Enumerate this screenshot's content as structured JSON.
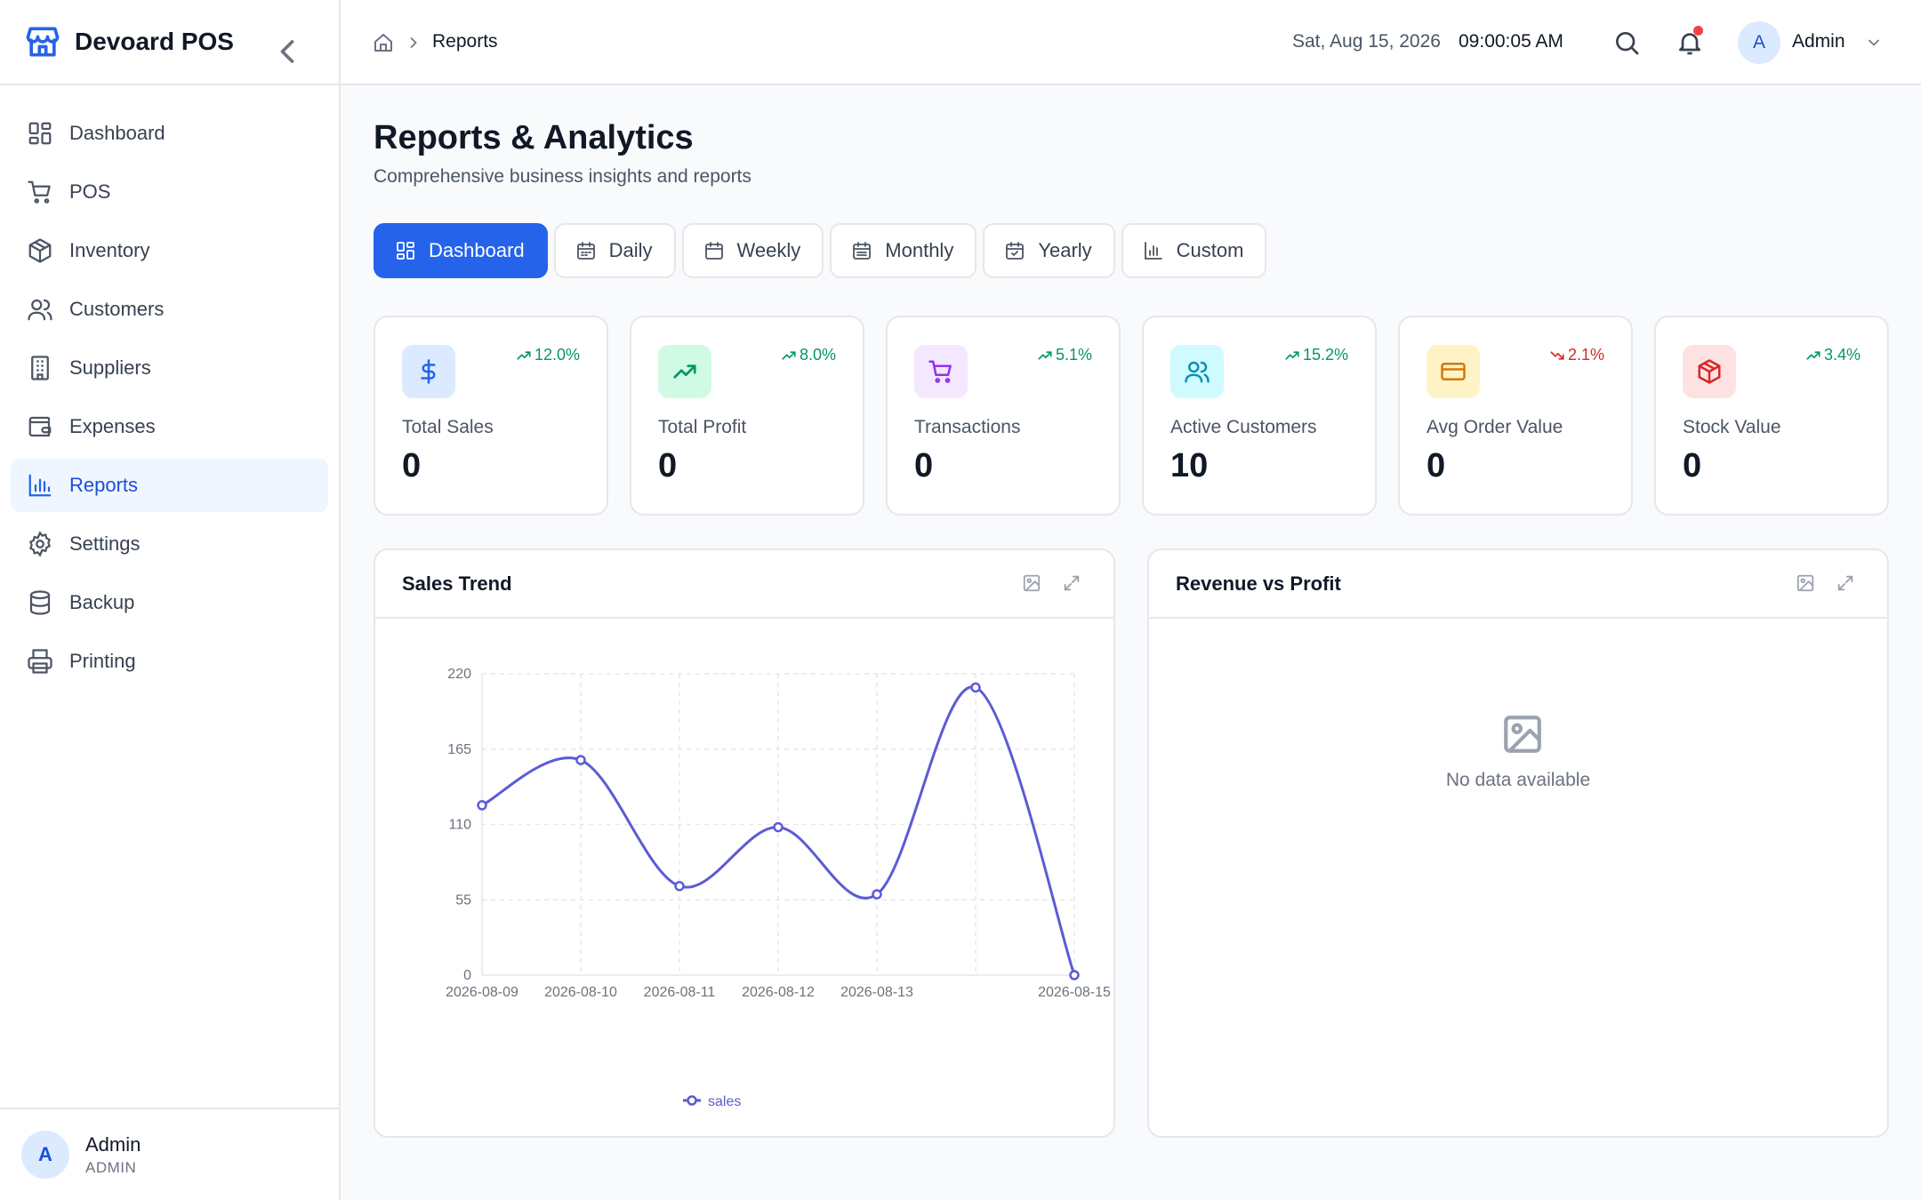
{
  "app": {
    "name": "Devoard POS"
  },
  "sidebar": {
    "items": [
      {
        "label": "Dashboard",
        "icon": "layout-grid-icon"
      },
      {
        "label": "POS",
        "icon": "shopping-cart-icon"
      },
      {
        "label": "Inventory",
        "icon": "package-icon"
      },
      {
        "label": "Customers",
        "icon": "users-icon"
      },
      {
        "label": "Suppliers",
        "icon": "building-icon"
      },
      {
        "label": "Expenses",
        "icon": "wallet-icon"
      },
      {
        "label": "Reports",
        "icon": "bar-chart-icon",
        "active": true
      },
      {
        "label": "Settings",
        "icon": "gear-icon"
      },
      {
        "label": "Backup",
        "icon": "database-icon"
      },
      {
        "label": "Printing",
        "icon": "printer-icon"
      }
    ],
    "user": {
      "initial": "A",
      "name": "Admin",
      "role": "ADMIN"
    }
  },
  "header": {
    "breadcrumb": {
      "current": "Reports"
    },
    "date": "Sat, Aug 15, 2026",
    "time": "09:00:05 AM",
    "user": {
      "initial": "A",
      "name": "Admin"
    },
    "has_notification": true
  },
  "page": {
    "title": "Reports & Analytics",
    "subtitle": "Comprehensive business insights and reports"
  },
  "tabs": [
    {
      "label": "Dashboard",
      "icon": "layout-grid-icon",
      "active": true
    },
    {
      "label": "Daily",
      "icon": "calendar-icon"
    },
    {
      "label": "Weekly",
      "icon": "calendar-icon"
    },
    {
      "label": "Monthly",
      "icon": "calendar-icon"
    },
    {
      "label": "Yearly",
      "icon": "calendar-check-icon"
    },
    {
      "label": "Custom",
      "icon": "bar-chart-icon"
    }
  ],
  "stats": [
    {
      "label": "Total Sales",
      "value": "0",
      "trend": "12.0%",
      "direction": "up",
      "icon": "dollar-icon",
      "color": "#2563eb",
      "bg": "#dbeafe"
    },
    {
      "label": "Total Profit",
      "value": "0",
      "trend": "8.0%",
      "direction": "up",
      "icon": "trending-up-icon",
      "color": "#059669",
      "bg": "#d1fae5"
    },
    {
      "label": "Transactions",
      "value": "0",
      "trend": "5.1%",
      "direction": "up",
      "icon": "shopping-cart-icon",
      "color": "#9333ea",
      "bg": "#f3e8ff"
    },
    {
      "label": "Active Customers",
      "value": "10",
      "trend": "15.2%",
      "direction": "up",
      "icon": "users-icon",
      "color": "#0891b2",
      "bg": "#cffafe"
    },
    {
      "label": "Avg Order Value",
      "value": "0",
      "trend": "2.1%",
      "direction": "down",
      "icon": "credit-card-icon",
      "color": "#d97706",
      "bg": "#fef3c7"
    },
    {
      "label": "Stock Value",
      "value": "0",
      "trend": "3.4%",
      "direction": "up",
      "icon": "package-icon",
      "color": "#dc2626",
      "bg": "#fee2e2"
    }
  ],
  "panels": {
    "sales_trend": {
      "title": "Sales Trend"
    },
    "revenue_profit": {
      "title": "Revenue vs Profit",
      "empty_text": "No data available"
    }
  },
  "colors": {
    "accent": "#2563eb",
    "trend_up": "#059669",
    "trend_down": "#dc2626",
    "series": "#5b5bd6"
  },
  "chart_data": {
    "type": "line",
    "title": "Sales Trend",
    "x": [
      "2026-08-09",
      "2026-08-10",
      "2026-08-11",
      "2026-08-12",
      "2026-08-13",
      "2026-08-14",
      "2026-08-15"
    ],
    "x_tick_labels": [
      "2026-08-09",
      "2026-08-10",
      "2026-08-11",
      "2026-08-12",
      "2026-08-13",
      "",
      "2026-08-15"
    ],
    "series": [
      {
        "name": "sales",
        "values": [
          124,
          157,
          65,
          108,
          59,
          210,
          0
        ]
      }
    ],
    "yticks": [
      0,
      55,
      110,
      165,
      220
    ],
    "ylim": [
      0,
      220
    ],
    "grid": true,
    "legend": "bottom-center"
  }
}
